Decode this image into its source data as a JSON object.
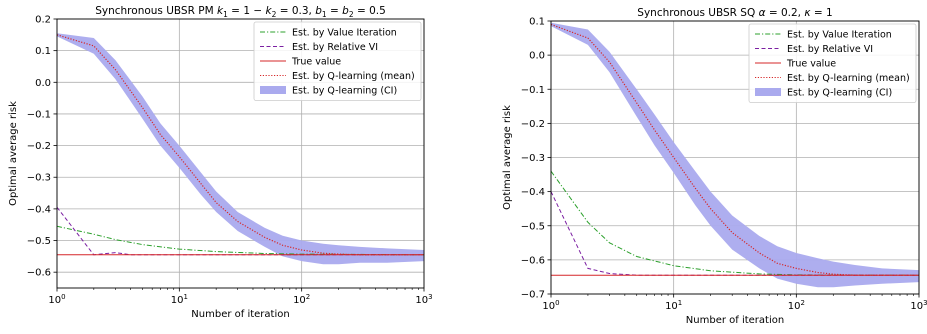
{
  "chart_data": [
    {
      "type": "line",
      "title": "Synchronous UBSR PM k₁ = 1 − k₂ = 0.3, b₁ = b₂ = 0.5",
      "title_parts": [
        {
          "t": "Synchronous UBSR PM "
        },
        {
          "t": "k",
          "i": true
        },
        {
          "t": "1",
          "sub": true
        },
        {
          "t": " = 1 − "
        },
        {
          "t": "k",
          "i": true
        },
        {
          "t": "2",
          "sub": true
        },
        {
          "t": " = 0.3, "
        },
        {
          "t": "b",
          "i": true
        },
        {
          "t": "1",
          "sub": true
        },
        {
          "t": " = "
        },
        {
          "t": "b",
          "i": true
        },
        {
          "t": "2",
          "sub": true
        },
        {
          "t": " = 0.5"
        }
      ],
      "xlabel": "Number of iteration",
      "ylabel": "Optimal average risk",
      "xscale": "log",
      "xlim": [
        1,
        1000
      ],
      "ylim": [
        -0.65,
        0.2
      ],
      "xticks": [
        1,
        10,
        100,
        1000
      ],
      "xtick_labels": [
        {
          "b": "10",
          "e": "0"
        },
        {
          "b": "10",
          "e": "1"
        },
        {
          "b": "10",
          "e": "2"
        },
        {
          "b": "10",
          "e": "3"
        }
      ],
      "yticks": [
        0.2,
        0.1,
        0.0,
        -0.1,
        -0.2,
        -0.3,
        -0.4,
        -0.5,
        -0.6
      ],
      "ytick_labels": [
        "0.2",
        "0.1",
        "0.0",
        "−0.1",
        "−0.2",
        "−0.3",
        "−0.4",
        "−0.5",
        "−0.6"
      ],
      "grid": true,
      "legend_position": "top-right",
      "series": [
        {
          "name": "Est. by Value Iteration",
          "style": "dashdot",
          "color": "#2ca02c",
          "x": [
            1,
            2,
            3,
            5,
            10,
            20,
            50,
            100,
            1000
          ],
          "y": [
            -0.455,
            -0.48,
            -0.497,
            -0.513,
            -0.527,
            -0.535,
            -0.541,
            -0.543,
            -0.545
          ]
        },
        {
          "name": "Est. by Relative VI",
          "style": "dashed",
          "color": "#7b1fa2",
          "x": [
            1,
            2,
            3,
            4,
            1000
          ],
          "y": [
            -0.395,
            -0.545,
            -0.538,
            -0.545,
            -0.545
          ]
        },
        {
          "name": "True value",
          "style": "solid",
          "color": "#d62728",
          "x": [
            1,
            1000
          ],
          "y": [
            -0.545,
            -0.545
          ]
        },
        {
          "name": "Est. by Q-learning (mean)",
          "style": "dotted",
          "color": "#d62728",
          "x": [
            1,
            2,
            3,
            5,
            7,
            10,
            15,
            20,
            30,
            50,
            70,
            100,
            150,
            200,
            300,
            500,
            1000
          ],
          "y": [
            0.15,
            0.115,
            0.04,
            -0.08,
            -0.165,
            -0.235,
            -0.32,
            -0.38,
            -0.44,
            -0.49,
            -0.515,
            -0.53,
            -0.54,
            -0.543,
            -0.545,
            -0.545,
            -0.545
          ]
        },
        {
          "name": "Est. by Q-learning (CI)",
          "style": "band",
          "color": "#aaaaee",
          "x": [
            1,
            2,
            3,
            5,
            7,
            10,
            15,
            20,
            30,
            50,
            70,
            100,
            150,
            200,
            300,
            500,
            1000
          ],
          "lower": [
            0.145,
            0.09,
            0.01,
            -0.115,
            -0.2,
            -0.27,
            -0.355,
            -0.41,
            -0.47,
            -0.52,
            -0.55,
            -0.565,
            -0.575,
            -0.575,
            -0.57,
            -0.57,
            -0.565
          ],
          "upper": [
            0.155,
            0.14,
            0.07,
            -0.045,
            -0.13,
            -0.2,
            -0.285,
            -0.345,
            -0.41,
            -0.46,
            -0.485,
            -0.5,
            -0.51,
            -0.515,
            -0.52,
            -0.525,
            -0.53
          ]
        }
      ]
    },
    {
      "type": "line",
      "title": "Synchronous UBSR SQ α = 0.2, κ = 1",
      "title_parts": [
        {
          "t": "Synchronous UBSR SQ "
        },
        {
          "t": "α",
          "i": true
        },
        {
          "t": " = 0.2, "
        },
        {
          "t": "κ",
          "i": true
        },
        {
          "t": " = 1"
        }
      ],
      "xlabel": "Number of iteration",
      "ylabel": "Optimal average risk",
      "xscale": "log",
      "xlim": [
        1,
        1000
      ],
      "ylim": [
        -0.7,
        0.1
      ],
      "xticks": [
        1,
        10,
        100,
        1000
      ],
      "xtick_labels": [
        {
          "b": "10",
          "e": "0"
        },
        {
          "b": "10",
          "e": "1"
        },
        {
          "b": "10",
          "e": "2"
        },
        {
          "b": "10",
          "e": "3"
        }
      ],
      "yticks": [
        0.1,
        0.0,
        -0.1,
        -0.2,
        -0.3,
        -0.4,
        -0.5,
        -0.6,
        -0.7
      ],
      "ytick_labels": [
        "0.1",
        "0.0",
        "−0.1",
        "−0.2",
        "−0.3",
        "−0.4",
        "−0.5",
        "−0.6",
        "−0.7"
      ],
      "grid": true,
      "legend_position": "top-right",
      "series": [
        {
          "name": "Est. by Value Iteration",
          "style": "dashdot",
          "color": "#2ca02c",
          "x": [
            1,
            2,
            3,
            5,
            10,
            20,
            50,
            100,
            1000
          ],
          "y": [
            -0.34,
            -0.49,
            -0.55,
            -0.59,
            -0.617,
            -0.632,
            -0.641,
            -0.644,
            -0.645
          ]
        },
        {
          "name": "Est. by Relative VI",
          "style": "dashed",
          "color": "#7b1fa2",
          "x": [
            1,
            2,
            3,
            5,
            1000
          ],
          "y": [
            -0.4,
            -0.625,
            -0.64,
            -0.645,
            -0.645
          ]
        },
        {
          "name": "True value",
          "style": "solid",
          "color": "#d62728",
          "x": [
            1,
            1000
          ],
          "y": [
            -0.645,
            -0.645
          ]
        },
        {
          "name": "Est. by Q-learning (mean)",
          "style": "dotted",
          "color": "#d62728",
          "x": [
            1,
            2,
            3,
            5,
            7,
            10,
            15,
            20,
            30,
            50,
            70,
            100,
            150,
            200,
            300,
            500,
            1000
          ],
          "y": [
            0.09,
            0.05,
            -0.02,
            -0.14,
            -0.22,
            -0.3,
            -0.39,
            -0.45,
            -0.52,
            -0.58,
            -0.61,
            -0.625,
            -0.637,
            -0.642,
            -0.645,
            -0.645,
            -0.645
          ]
        },
        {
          "name": "Est. by Q-learning (CI)",
          "style": "band",
          "color": "#aaaaee",
          "x": [
            1,
            2,
            3,
            5,
            7,
            10,
            15,
            20,
            30,
            50,
            70,
            100,
            150,
            200,
            300,
            500,
            1000
          ],
          "lower": [
            0.085,
            0.03,
            -0.05,
            -0.18,
            -0.265,
            -0.345,
            -0.44,
            -0.5,
            -0.57,
            -0.625,
            -0.655,
            -0.67,
            -0.68,
            -0.68,
            -0.675,
            -0.67,
            -0.665
          ],
          "upper": [
            0.095,
            0.075,
            0.01,
            -0.1,
            -0.175,
            -0.255,
            -0.34,
            -0.4,
            -0.47,
            -0.53,
            -0.56,
            -0.58,
            -0.595,
            -0.605,
            -0.615,
            -0.625,
            -0.63
          ]
        }
      ]
    }
  ]
}
